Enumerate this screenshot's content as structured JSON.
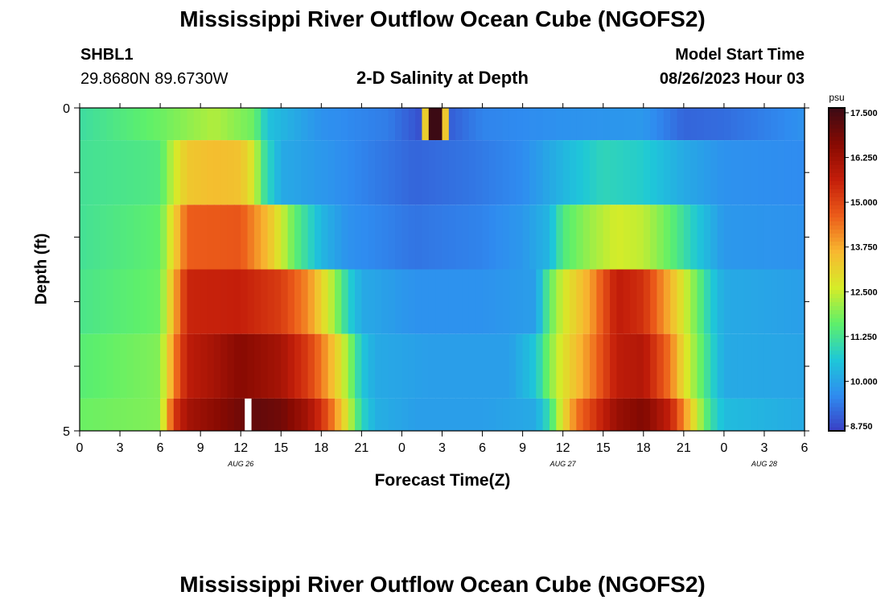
{
  "page_title": "Mississippi River Outflow Ocean Cube (NGOFS2)",
  "footer_title": "Mississippi River Outflow Ocean Cube (NGOFS2)",
  "station": {
    "id": "SHBL1",
    "coords": "29.8680N  89.6730W"
  },
  "model": {
    "start_label": "Model Start Time",
    "start_value": "08/26/2023 Hour 03"
  },
  "colors": {
    "colormap": [
      "#3a3ec4",
      "#2f8cf0",
      "#1ec8d8",
      "#5ef06a",
      "#d6ec28",
      "#f8b830",
      "#ec5c1a",
      "#c41e0a",
      "#870a02",
      "#3c0a14"
    ],
    "gap": "#ffffff"
  },
  "chart_data": {
    "type": "heatmap",
    "title": "2-D Salinity at Depth",
    "xlabel": "Forecast Time(Z)",
    "ylabel": "Depth (ft)",
    "x_ticks": [
      "0",
      "3",
      "6",
      "9",
      "12",
      "15",
      "18",
      "21",
      "0",
      "3",
      "6",
      "9",
      "12",
      "15",
      "18",
      "21",
      "0",
      "3",
      "6"
    ],
    "x_hours_from_aug26_00z": [
      0,
      3,
      6,
      9,
      12,
      15,
      18,
      21,
      24,
      27,
      30,
      33,
      36,
      39,
      42,
      45,
      48,
      51,
      54
    ],
    "date_labels": [
      {
        "label": "AUG 26",
        "hour": 12
      },
      {
        "label": "AUG 27",
        "hour": 36
      },
      {
        "label": "AUG 28",
        "hour": 51
      }
    ],
    "x_range_hours": [
      0,
      54
    ],
    "y_ticks": [
      "0",
      "5"
    ],
    "y_range": [
      0,
      5
    ],
    "layers_ft": [
      0,
      1,
      2,
      3,
      4,
      5
    ],
    "colorbar": {
      "unit": "psu",
      "ticks": [
        "17.500",
        "16.250",
        "15.000",
        "13.750",
        "12.500",
        "11.250",
        "10.000",
        "8.750"
      ],
      "range": [
        8.5,
        17.5
      ]
    },
    "series": [
      {
        "depth_ft": 0,
        "points": [
          [
            0,
            11.0
          ],
          [
            6,
            11.6
          ],
          [
            10,
            12.2
          ],
          [
            13,
            11.6
          ],
          [
            14,
            10.4
          ],
          [
            18,
            9.6
          ],
          [
            23,
            9.3
          ],
          [
            25.5,
            8.7
          ],
          [
            26,
            17.5
          ],
          [
            27,
            17.5
          ],
          [
            27.5,
            8.9
          ],
          [
            30,
            9.4
          ],
          [
            36,
            9.6
          ],
          [
            42,
            9.7
          ],
          [
            45,
            9.0
          ],
          [
            48,
            9.1
          ],
          [
            54,
            9.6
          ]
        ]
      },
      {
        "depth_ft": 1,
        "points": [
          [
            0,
            11.1
          ],
          [
            6,
            11.3
          ],
          [
            7,
            12.4
          ],
          [
            8,
            13.2
          ],
          [
            10,
            13.4
          ],
          [
            12,
            13.3
          ],
          [
            13,
            12.5
          ],
          [
            13.8,
            11.0
          ],
          [
            15,
            10.0
          ],
          [
            20,
            9.5
          ],
          [
            25,
            9.0
          ],
          [
            29,
            9.2
          ],
          [
            33,
            9.5
          ],
          [
            36,
            10.2
          ],
          [
            39,
            10.8
          ],
          [
            42,
            10.6
          ],
          [
            45,
            10.0
          ],
          [
            48,
            9.6
          ],
          [
            54,
            9.5
          ]
        ]
      },
      {
        "depth_ft": 2,
        "points": [
          [
            0,
            11.1
          ],
          [
            6,
            11.5
          ],
          [
            7,
            13.0
          ],
          [
            8,
            14.5
          ],
          [
            12,
            14.6
          ],
          [
            14,
            13.4
          ],
          [
            15,
            12.5
          ],
          [
            16,
            11.5
          ],
          [
            18,
            10.2
          ],
          [
            20,
            9.6
          ],
          [
            25,
            9.2
          ],
          [
            30,
            9.4
          ],
          [
            33,
            9.7
          ],
          [
            35,
            10.2
          ],
          [
            36,
            11.3
          ],
          [
            38,
            12.0
          ],
          [
            40,
            12.5
          ],
          [
            42,
            12.3
          ],
          [
            44,
            11.5
          ],
          [
            46,
            10.5
          ],
          [
            48,
            9.7
          ],
          [
            54,
            9.6
          ]
        ]
      },
      {
        "depth_ft": 3,
        "points": [
          [
            0,
            11.2
          ],
          [
            6,
            11.6
          ],
          [
            7,
            13.5
          ],
          [
            8,
            15.4
          ],
          [
            12,
            15.5
          ],
          [
            15,
            15.0
          ],
          [
            17,
            14.0
          ],
          [
            18,
            13.0
          ],
          [
            19,
            12.0
          ],
          [
            20,
            10.7
          ],
          [
            21,
            10.0
          ],
          [
            25,
            9.6
          ],
          [
            30,
            9.6
          ],
          [
            34,
            9.8
          ],
          [
            35,
            11.5
          ],
          [
            36,
            12.5
          ],
          [
            38,
            13.7
          ],
          [
            40,
            15.6
          ],
          [
            42,
            15.2
          ],
          [
            44,
            13.5
          ],
          [
            46,
            11.6
          ],
          [
            47,
            10.6
          ],
          [
            48,
            10.0
          ],
          [
            54,
            9.8
          ]
        ]
      },
      {
        "depth_ft": 4,
        "points": [
          [
            0,
            11.4
          ],
          [
            6,
            11.8
          ],
          [
            7,
            14.0
          ],
          [
            8,
            15.6
          ],
          [
            10,
            16.0
          ],
          [
            12,
            16.5
          ],
          [
            15,
            16.0
          ],
          [
            17,
            15.0
          ],
          [
            18,
            14.2
          ],
          [
            19,
            13.2
          ],
          [
            20,
            12.0
          ],
          [
            21,
            10.5
          ],
          [
            22,
            10.0
          ],
          [
            26,
            9.8
          ],
          [
            32,
            9.8
          ],
          [
            34,
            10.5
          ],
          [
            35,
            11.8
          ],
          [
            36,
            12.7
          ],
          [
            38,
            14.0
          ],
          [
            40,
            15.6
          ],
          [
            42,
            15.8
          ],
          [
            44,
            14.2
          ],
          [
            45,
            12.8
          ],
          [
            46,
            11.8
          ],
          [
            47,
            10.8
          ],
          [
            48,
            10.0
          ],
          [
            54,
            9.9
          ]
        ]
      },
      {
        "depth_ft": 5,
        "points": [
          [
            0,
            11.6
          ],
          [
            6,
            11.8
          ],
          [
            7,
            15.0
          ],
          [
            8,
            16.0
          ],
          [
            10,
            16.4
          ],
          [
            12,
            16.8
          ],
          [
            13,
            17.0
          ],
          [
            15,
            16.8
          ],
          [
            17,
            16.0
          ],
          [
            18,
            15.2
          ],
          [
            19,
            14.0
          ],
          [
            20,
            12.5
          ],
          [
            21,
            10.8
          ],
          [
            22,
            10.1
          ],
          [
            25,
            9.8
          ],
          [
            30,
            9.8
          ],
          [
            34,
            10.0
          ],
          [
            35,
            11.0
          ],
          [
            36,
            12.8
          ],
          [
            37,
            14.2
          ],
          [
            40,
            16.2
          ],
          [
            42,
            16.6
          ],
          [
            44,
            15.5
          ],
          [
            45,
            14.0
          ],
          [
            46,
            12.4
          ],
          [
            47,
            11.0
          ],
          [
            48,
            10.3
          ],
          [
            54,
            10.0
          ]
        ]
      }
    ],
    "missing_data": [
      {
        "depth_ft": 5,
        "hour_start": 12.3,
        "hour_end": 12.8
      }
    ]
  }
}
